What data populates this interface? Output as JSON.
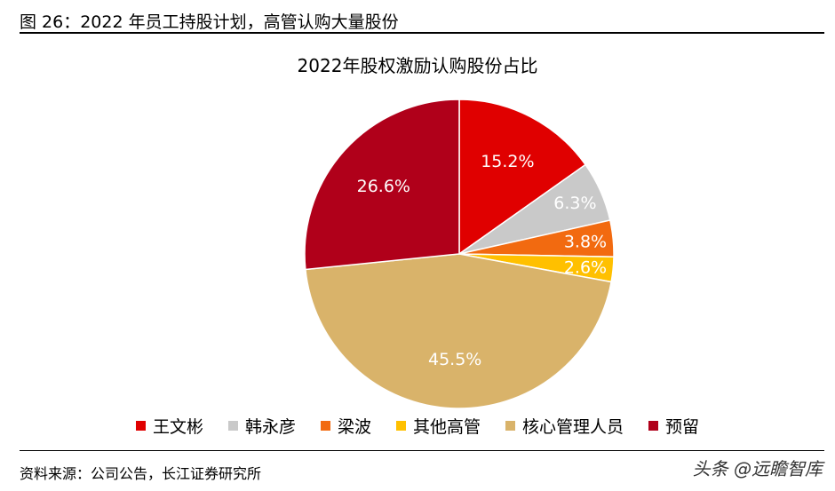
{
  "figure": {
    "title": "图 26：2022 年员工持股计划，高管认购大量股份",
    "source": "资料来源：公司公告，长江证券研究所",
    "watermark": "头条 @远瞻智库"
  },
  "chart_data": {
    "type": "pie",
    "title": "2022年股权激励认购股份占比",
    "legend_position": "bottom",
    "slices": [
      {
        "label": "王文彬",
        "value": 15.2,
        "display": "15.2%",
        "color": "#E00000",
        "label_color": "#ffffff"
      },
      {
        "label": "韩永彦",
        "value": 6.3,
        "display": "6.3%",
        "color": "#C9C9C9",
        "label_color": "#ffffff"
      },
      {
        "label": "梁波",
        "value": 3.8,
        "display": "3.8%",
        "color": "#F26A10",
        "label_color": "#ffffff"
      },
      {
        "label": "其他高管",
        "value": 2.6,
        "display": "2.6%",
        "color": "#FFC000",
        "label_color": "#ffffff"
      },
      {
        "label": "核心管理人员",
        "value": 45.5,
        "display": "45.5%",
        "color": "#D9B36A",
        "label_color": "#ffffff"
      },
      {
        "label": "预留",
        "value": 26.6,
        "display": "26.6%",
        "color": "#B0001A",
        "label_color": "#ffffff"
      }
    ]
  }
}
